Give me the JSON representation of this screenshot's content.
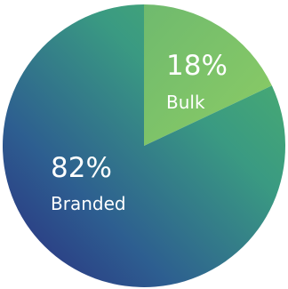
{
  "chart_data": {
    "type": "pie",
    "slices": [
      {
        "label": "Bulk",
        "value": 18,
        "value_text": "18%",
        "color": "#7cc26a"
      },
      {
        "label": "Branded",
        "value": 82,
        "value_text": "82%",
        "color_start": "#4cae7a",
        "color_end": "#2a2c82"
      }
    ],
    "title": "",
    "legend": "none"
  }
}
